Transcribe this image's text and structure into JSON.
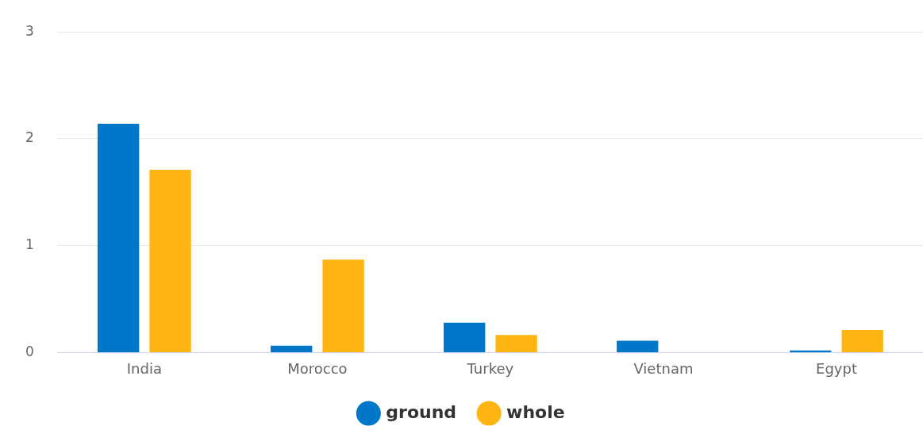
{
  "chart_data": {
    "type": "bar",
    "categories": [
      "India",
      "Morocco",
      "Turkey",
      "Vietnam",
      "Egypt"
    ],
    "series": [
      {
        "name": "ground",
        "color": "#0077c8",
        "values": [
          2.14,
          0.065,
          0.28,
          0.11,
          0.02
        ]
      },
      {
        "name": "whole",
        "color": "#ffb511",
        "values": [
          1.71,
          0.87,
          0.165,
          0,
          0.21
        ]
      }
    ],
    "ylim": [
      0,
      3
    ],
    "yticks": [
      0,
      1,
      2,
      3
    ],
    "grid": "y",
    "legend": "bottom"
  }
}
